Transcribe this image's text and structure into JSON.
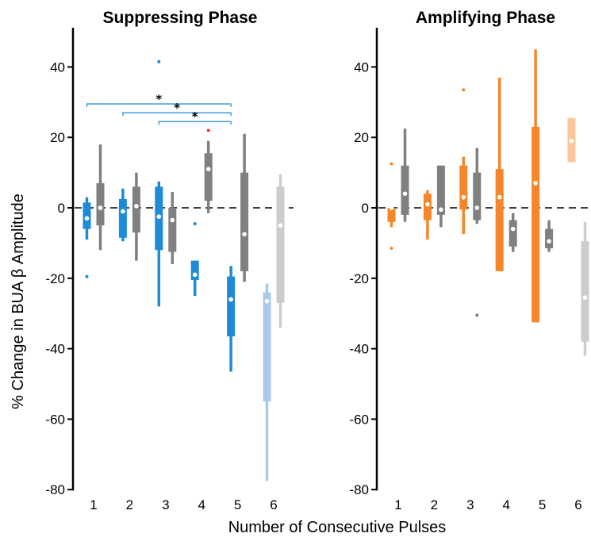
{
  "figure": {
    "ylabel": "% Change in BUA β Amplitude",
    "xlabel": "Number of Consecutive Pulses"
  },
  "colors": {
    "blue": "#1f8ad6",
    "blue_light": "#a9cbe8",
    "orange": "#f5872a",
    "orange_light": "#f8c79a",
    "gray": "#808080",
    "gray_light": "#cccccc",
    "red": "#ff3030"
  },
  "chart_data": [
    {
      "type": "box",
      "title": "Suppressing Phase",
      "ylim": [
        -80,
        50
      ],
      "yticks": [
        40,
        20,
        0,
        -20,
        -40,
        -60,
        -80
      ],
      "ytick_labels": [
        "40",
        "20",
        "0",
        "-20",
        "-40",
        "-60",
        "-80"
      ],
      "categories": [
        "1",
        "2",
        "3",
        "4",
        "5",
        "6"
      ],
      "reference_line": 0,
      "boxes": [
        {
          "group": 1,
          "series": "stim",
          "color": "blue",
          "whisker": [
            -9,
            3
          ],
          "iqr": [
            -6,
            1.5
          ],
          "median": -3,
          "outliers": [
            -19.5
          ]
        },
        {
          "group": 1,
          "series": "control",
          "color": "gray",
          "whisker": [
            -12,
            18
          ],
          "iqr": [
            -5,
            7
          ],
          "median": 0,
          "outliers": []
        },
        {
          "group": 2,
          "series": "stim",
          "color": "blue",
          "whisker": [
            -9.5,
            5.5
          ],
          "iqr": [
            -8.5,
            2.5
          ],
          "median": -1,
          "outliers": []
        },
        {
          "group": 2,
          "series": "control",
          "color": "gray",
          "whisker": [
            -15,
            10
          ],
          "iqr": [
            -7,
            6
          ],
          "median": 0.5,
          "outliers": []
        },
        {
          "group": 3,
          "series": "stim",
          "color": "blue",
          "whisker": [
            -28,
            7.5
          ],
          "iqr": [
            -12,
            6
          ],
          "median": -2.5,
          "outliers": [
            41.5
          ]
        },
        {
          "group": 3,
          "series": "control",
          "color": "gray",
          "whisker": [
            -16,
            4.5
          ],
          "iqr": [
            -12.5,
            0
          ],
          "median": -3.5,
          "outliers": []
        },
        {
          "group": 4,
          "series": "stim",
          "color": "blue",
          "whisker": [
            -25,
            -15
          ],
          "iqr": [
            -20.5,
            -15
          ],
          "median": -19,
          "outliers": [
            -4.5
          ]
        },
        {
          "group": 4,
          "series": "control",
          "color": "gray",
          "whisker": [
            -1.5,
            19
          ],
          "iqr": [
            2,
            15.5
          ],
          "median": 11,
          "outliers": [
            22
          ],
          "outlier_color": "red"
        },
        {
          "group": 5,
          "series": "stim",
          "color": "blue",
          "whisker": [
            -46.5,
            -16.5
          ],
          "iqr": [
            -36.5,
            -19.5
          ],
          "median": -26,
          "outliers": []
        },
        {
          "group": 5,
          "series": "control",
          "color": "gray",
          "whisker": [
            -21,
            21
          ],
          "iqr": [
            -18,
            10
          ],
          "median": -7.5,
          "outliers": []
        },
        {
          "group": 6,
          "series": "stim",
          "color": "blue_light",
          "whisker": [
            -77.5,
            -21.5
          ],
          "iqr": [
            -55,
            -24
          ],
          "median": -26.5,
          "outliers": []
        },
        {
          "group": 6,
          "series": "control",
          "color": "gray_light",
          "whisker": [
            -34,
            9.5
          ],
          "iqr": [
            -27,
            6
          ],
          "median": -5,
          "outliers": []
        }
      ],
      "significance": [
        {
          "from_group": 1,
          "to_group": 5,
          "y": 29.5,
          "label": "*"
        },
        {
          "from_group": 2,
          "to_group": 5,
          "y": 27,
          "label": "*"
        },
        {
          "from_group": 3,
          "to_group": 5,
          "y": 24.5,
          "label": "*"
        }
      ]
    },
    {
      "type": "box",
      "title": "Amplifying Phase",
      "ylim": [
        -80,
        50
      ],
      "yticks": [
        40,
        20,
        0,
        -20,
        -40,
        -60,
        -80
      ],
      "ytick_labels": [
        "40",
        "20",
        "0",
        "-20",
        "-40",
        "-60",
        "-80"
      ],
      "categories": [
        "1",
        "2",
        "3",
        "4",
        "5",
        "6"
      ],
      "reference_line": 0,
      "boxes": [
        {
          "group": 1,
          "series": "stim",
          "color": "orange",
          "whisker": [
            -5.5,
            0.5
          ],
          "iqr": [
            -4,
            0
          ],
          "median": 0,
          "outliers": [
            12.5,
            -11.5
          ]
        },
        {
          "group": 1,
          "series": "control",
          "color": "gray",
          "whisker": [
            -4,
            22.5
          ],
          "iqr": [
            -2,
            12
          ],
          "median": 4,
          "outliers": []
        },
        {
          "group": 2,
          "series": "stim",
          "color": "orange",
          "whisker": [
            -9,
            5
          ],
          "iqr": [
            -3.5,
            4
          ],
          "median": 1,
          "outliers": []
        },
        {
          "group": 2,
          "series": "control",
          "color": "gray",
          "whisker": [
            -5.5,
            12
          ],
          "iqr": [
            -2,
            12
          ],
          "median": -0.5,
          "outliers": []
        },
        {
          "group": 3,
          "series": "stim",
          "color": "orange",
          "whisker": [
            -7.5,
            14.5
          ],
          "iqr": [
            -0.5,
            12
          ],
          "median": 3,
          "outliers": [
            33.5
          ]
        },
        {
          "group": 3,
          "series": "control",
          "color": "gray",
          "whisker": [
            -4.5,
            17
          ],
          "iqr": [
            -3.5,
            10
          ],
          "median": 0,
          "outliers": [
            -30.5
          ]
        },
        {
          "group": 4,
          "series": "stim",
          "color": "orange",
          "whisker": [
            -18,
            37
          ],
          "iqr": [
            -18,
            11
          ],
          "median": 3,
          "outliers": []
        },
        {
          "group": 4,
          "series": "control",
          "color": "gray",
          "whisker": [
            -12.5,
            -1.5
          ],
          "iqr": [
            -11,
            -3.5
          ],
          "median": -6,
          "outliers": []
        },
        {
          "group": 5,
          "series": "stim",
          "color": "orange",
          "whisker": [
            -32.5,
            45
          ],
          "iqr": [
            -32.5,
            23
          ],
          "median": 7,
          "outliers": []
        },
        {
          "group": 5,
          "series": "control",
          "color": "gray",
          "whisker": [
            -12.5,
            -3.5
          ],
          "iqr": [
            -11.5,
            -6
          ],
          "median": -9.5,
          "outliers": []
        },
        {
          "group": 6,
          "series": "stim",
          "color": "orange_light",
          "whisker": [
            13,
            25.5
          ],
          "iqr": [
            13,
            25.5
          ],
          "median": 19,
          "outliers": []
        },
        {
          "group": 6,
          "series": "control",
          "color": "gray_light",
          "whisker": [
            -42,
            -4
          ],
          "iqr": [
            -38,
            -9.5
          ],
          "median": -25.5,
          "outliers": []
        }
      ],
      "significance": []
    }
  ]
}
